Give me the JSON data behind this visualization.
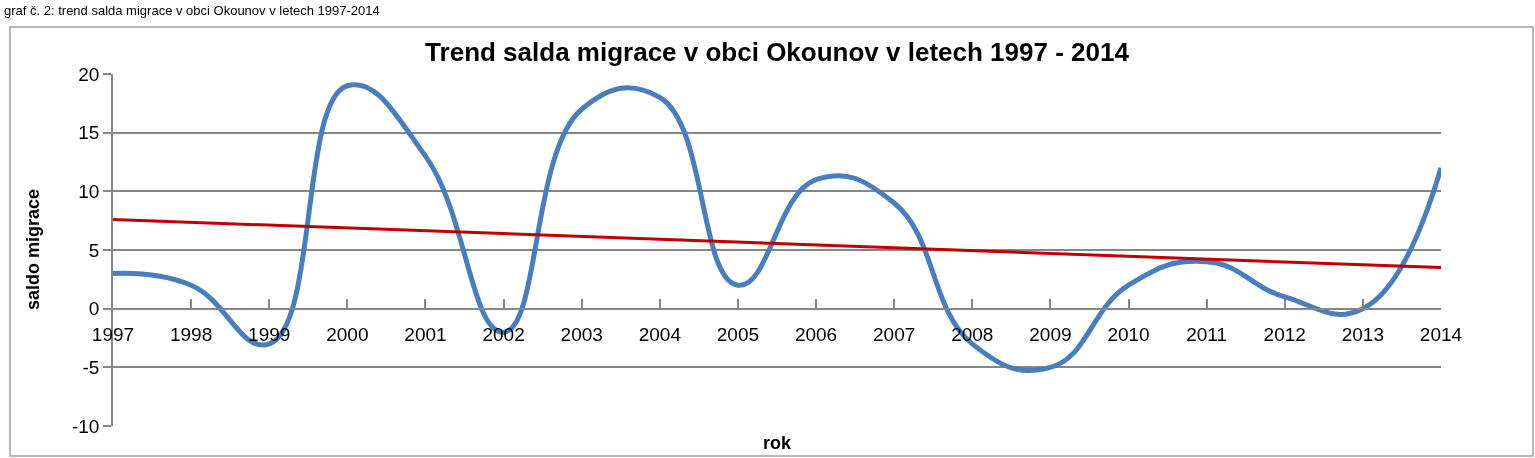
{
  "chart_data": {
    "type": "line",
    "title": "Trend salda migrace v obci Okounov v letech 1997 - 2014",
    "xlabel": "rok",
    "ylabel": "saldo migrace",
    "annotations": [
      "graf č. 2: trend salda migrace v obci Okounov v letech 1997-2014"
    ],
    "x": [
      1997,
      1998,
      1999,
      2000,
      2001,
      2002,
      2003,
      2004,
      2005,
      2006,
      2007,
      2008,
      2009,
      2010,
      2011,
      2012,
      2013,
      2014
    ],
    "series": [
      {
        "color": "#4a7ebb",
        "values": [
          3,
          2,
          -3,
          19,
          13,
          -2,
          17,
          18,
          2,
          11,
          9,
          -3,
          -5,
          2,
          4,
          1,
          0,
          12
        ]
      },
      {
        "type": "line",
        "color": "#c00000",
        "x": [
          1997,
          2014
        ],
        "values": [
          7.6,
          3.5
        ]
      }
    ],
    "xlim": [
      1997,
      2014
    ],
    "xticks": [
      1997,
      1998,
      1999,
      2000,
      2001,
      2002,
      2003,
      2004,
      2005,
      2006,
      2007,
      2008,
      2009,
      2010,
      2011,
      2012,
      2013,
      2014
    ],
    "ylim": [
      -10,
      20
    ],
    "yticks": [
      -10,
      -5,
      0,
      5,
      10,
      15,
      20
    ],
    "grid": "y"
  }
}
